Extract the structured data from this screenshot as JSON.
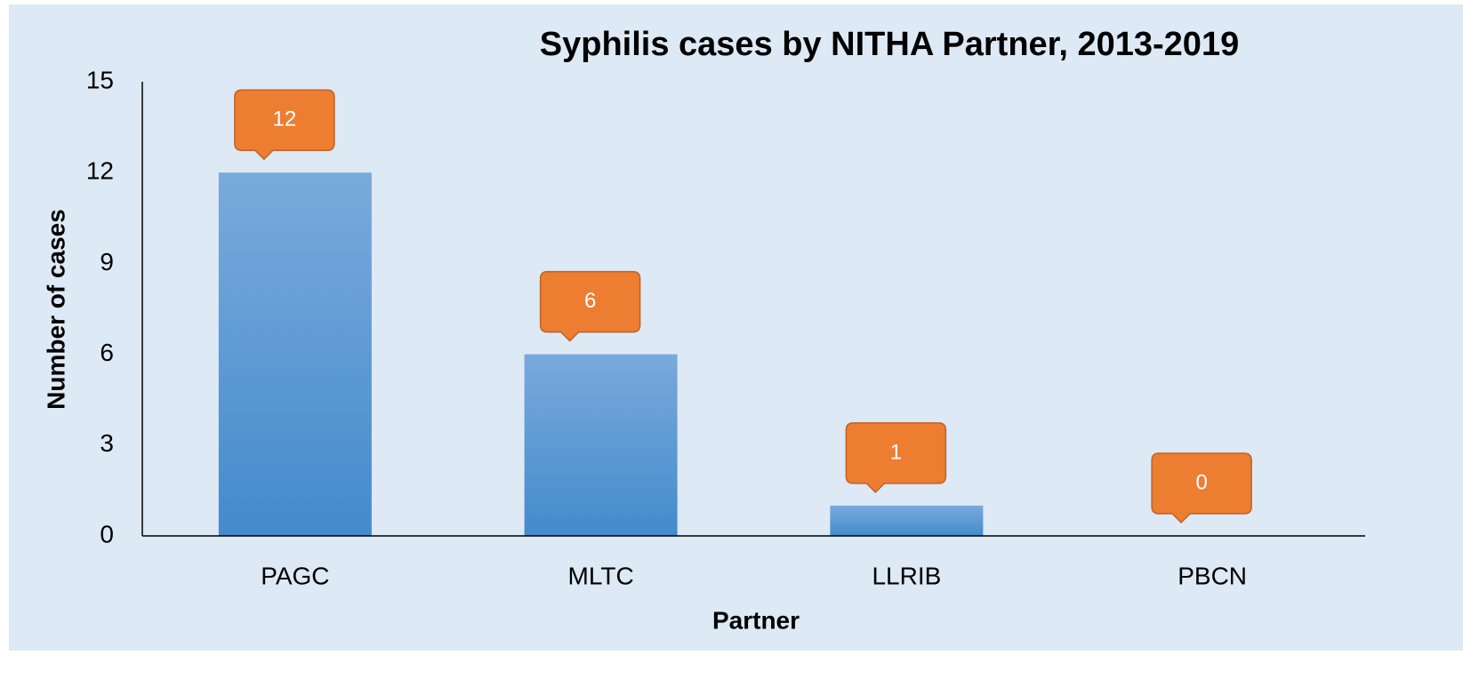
{
  "chart_data": {
    "type": "bar",
    "title": "Syphilis cases by NITHA Partner, 2013-2019",
    "x_label": "Partner",
    "y_label": "Number of cases",
    "categories": [
      "PAGC",
      "MLTC",
      "LLRIB",
      "PBCN"
    ],
    "values": [
      12,
      6,
      1,
      0
    ],
    "color": "#559ddb",
    "label_color": "#ed7d31",
    "ylim": [
      0,
      15
    ],
    "yticks": [
      0,
      3,
      6,
      9,
      12,
      15
    ],
    "grid": false
  }
}
